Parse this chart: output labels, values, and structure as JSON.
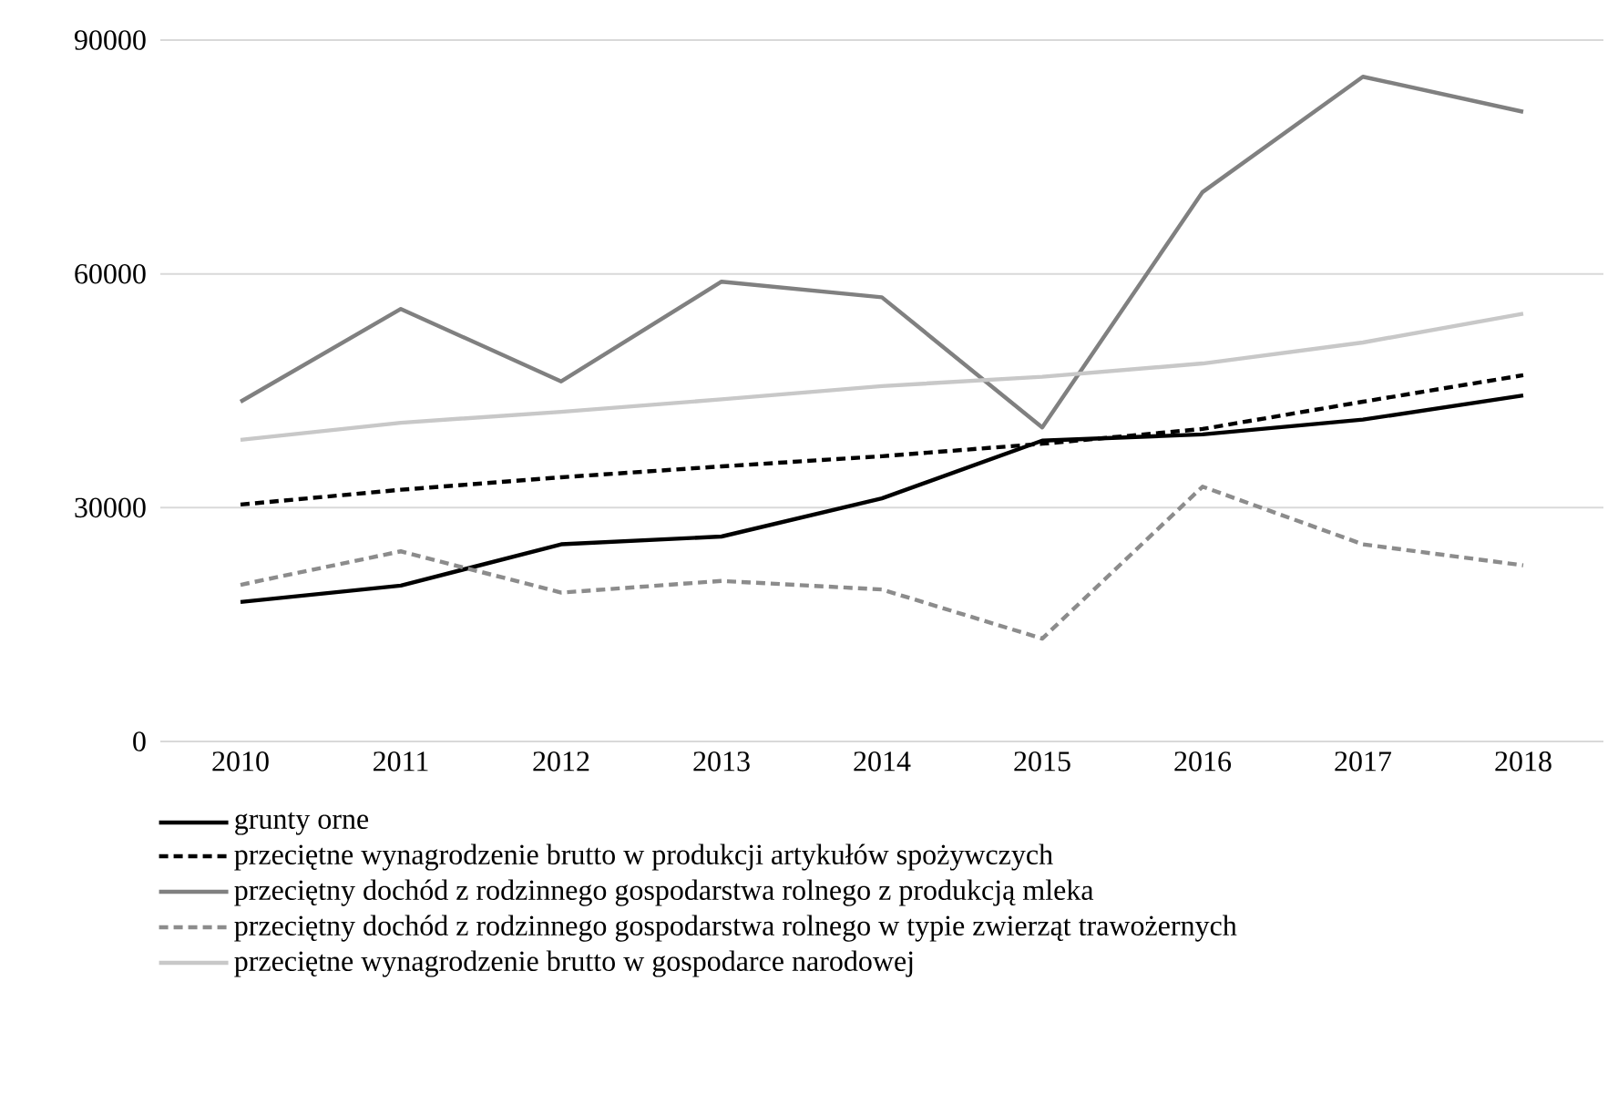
{
  "chart_data": {
    "type": "line",
    "categories": [
      "2010",
      "2011",
      "2012",
      "2013",
      "2014",
      "2015",
      "2016",
      "2017",
      "2018"
    ],
    "series": [
      {
        "name": "grunty orne",
        "color": "#000000",
        "line_style": "solid",
        "values": [
          17900,
          20000,
          25300,
          26300,
          31200,
          38600,
          39400,
          41300,
          44400
        ]
      },
      {
        "name": "przeciętne wynagrodzenie brutto w produkcji artykułów spożywczych",
        "color": "#000000",
        "line_style": "dashed",
        "values": [
          30400,
          32300,
          33900,
          35300,
          36600,
          38200,
          40100,
          43600,
          47000
        ]
      },
      {
        "name": "przeciętny dochód z rodzinnego gospodarstwa rolnego z produkcją mleka",
        "color": "#808080",
        "line_style": "solid",
        "values": [
          43600,
          55500,
          46200,
          59000,
          57000,
          40300,
          70500,
          85300,
          80800
        ]
      },
      {
        "name": "przeciętny dochód z rodzinnego gospodarstwa rolnego w typie zwierząt trawożernych",
        "color": "#8c8c8c",
        "line_style": "dashed",
        "values": [
          20100,
          24400,
          19100,
          20600,
          19500,
          13200,
          32700,
          25300,
          22600
        ]
      },
      {
        "name": "przeciętne wynagrodzenie brutto w gospodarce narodowej",
        "color": "#c8c8c8",
        "line_style": "solid",
        "values": [
          38700,
          40900,
          42300,
          43900,
          45600,
          46800,
          48500,
          51200,
          54900
        ]
      }
    ],
    "ylim": [
      0,
      90000
    ],
    "yticks": [
      0,
      30000,
      60000,
      90000
    ],
    "grid": "y",
    "legend": "bottom"
  }
}
